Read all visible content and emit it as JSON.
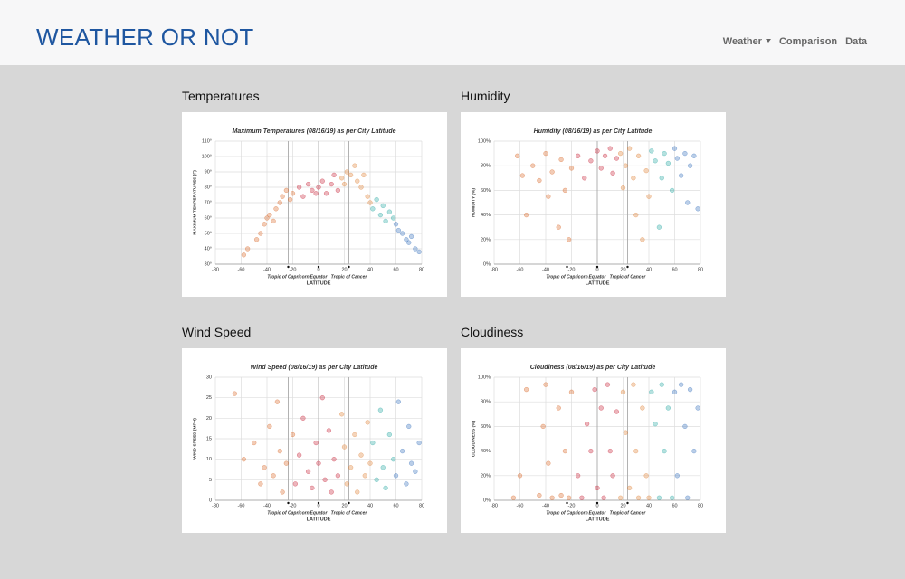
{
  "header": {
    "brand": "WEATHER OR NOT",
    "nav": [
      "Weather",
      "Comparison",
      "Data"
    ]
  },
  "sections": [
    "Temperatures",
    "Humidity",
    "Wind Speed",
    "Cloudiness"
  ],
  "color_by_latitude": [
    {
      "max": -20,
      "color": "#d9692a"
    },
    {
      "max": 15,
      "color": "#c8283c"
    },
    {
      "max": 40,
      "color": "#e0833a"
    },
    {
      "max": 58,
      "color": "#2aa9a3"
    },
    {
      "max": 80,
      "color": "#3a73bd"
    }
  ],
  "chart_data": [
    {
      "type": "scatter",
      "title": "Maximum Temperatures (08/16/19) as per City Latitude",
      "x_label": "LATITUDE",
      "y_label": "MAXIMUM TEMPERATURES (F)",
      "xlim": [
        -80,
        80
      ],
      "xticks": [
        -80,
        -60,
        -40,
        -20,
        0,
        20,
        40,
        60,
        80
      ],
      "ylim": [
        30,
        110
      ],
      "yticks": [
        {
          "value": 30,
          "label": "30°"
        },
        {
          "value": 40,
          "label": "40°"
        },
        {
          "value": 50,
          "label": "50°"
        },
        {
          "value": 60,
          "label": "60°"
        },
        {
          "value": 70,
          "label": "70°"
        },
        {
          "value": 80,
          "label": "80°"
        },
        {
          "value": 90,
          "label": "90°"
        },
        {
          "value": 100,
          "label": "100°"
        },
        {
          "value": 110,
          "label": "110°"
        }
      ],
      "grid": true,
      "annotations": [
        {
          "label": "Tropic of Capricorn",
          "x": -23.5
        },
        {
          "label": "Equator",
          "x": 0
        },
        {
          "label": "Tropic of Cancer",
          "x": 23.5
        }
      ],
      "x": [
        -58,
        -55,
        -48,
        -45,
        -42,
        -40,
        -38,
        -35,
        -33,
        -30,
        -28,
        -25,
        -22,
        -20,
        -15,
        -12,
        -8,
        -5,
        -2,
        0,
        3,
        6,
        10,
        12,
        15,
        18,
        20,
        22,
        25,
        28,
        30,
        33,
        35,
        38,
        40,
        42,
        45,
        48,
        50,
        52,
        55,
        58,
        60,
        62,
        65,
        68,
        70,
        72,
        75,
        78
      ],
      "values": [
        36,
        40,
        46,
        50,
        56,
        60,
        62,
        58,
        66,
        70,
        74,
        78,
        72,
        76,
        80,
        74,
        82,
        78,
        76,
        80,
        84,
        76,
        82,
        88,
        78,
        86,
        82,
        90,
        88,
        94,
        84,
        80,
        88,
        74,
        70,
        66,
        72,
        62,
        68,
        58,
        64,
        60,
        56,
        52,
        50,
        46,
        44,
        48,
        40,
        38
      ]
    },
    {
      "type": "scatter",
      "title": "Humidity (08/16/19) as per City Latitude",
      "x_label": "LATITUDE",
      "y_label": "HUMIDITY (%)",
      "xlim": [
        -80,
        80
      ],
      "xticks": [
        -80,
        -60,
        -40,
        -20,
        0,
        20,
        40,
        60,
        80
      ],
      "ylim": [
        0,
        100
      ],
      "yticks": [
        {
          "value": 0,
          "label": "0%"
        },
        {
          "value": 20,
          "label": "20%"
        },
        {
          "value": 40,
          "label": "40%"
        },
        {
          "value": 60,
          "label": "60%"
        },
        {
          "value": 80,
          "label": "80%"
        },
        {
          "value": 100,
          "label": "100%"
        }
      ],
      "grid": true,
      "annotations": [
        {
          "label": "Tropic of Capricorn",
          "x": -23.5
        },
        {
          "label": "Equator",
          "x": 0
        },
        {
          "label": "Tropic of Cancer",
          "x": 23.5
        }
      ],
      "x": [
        -62,
        -58,
        -55,
        -50,
        -45,
        -40,
        -38,
        -35,
        -30,
        -28,
        -25,
        -22,
        -20,
        -15,
        -10,
        -5,
        0,
        3,
        6,
        10,
        12,
        15,
        18,
        20,
        22,
        25,
        28,
        30,
        32,
        35,
        38,
        40,
        42,
        45,
        48,
        50,
        52,
        55,
        58,
        60,
        62,
        65,
        68,
        70,
        72,
        75,
        78
      ],
      "values": [
        88,
        72,
        40,
        80,
        68,
        90,
        55,
        75,
        30,
        85,
        60,
        20,
        78,
        88,
        70,
        84,
        92,
        78,
        88,
        94,
        74,
        86,
        90,
        62,
        80,
        94,
        70,
        40,
        88,
        20,
        76,
        55,
        92,
        84,
        30,
        70,
        90,
        82,
        60,
        94,
        86,
        72,
        90,
        50,
        80,
        88,
        45
      ]
    },
    {
      "type": "scatter",
      "title": "Wind Speed (08/16/19) as per City Latitude",
      "x_label": "LATITUDE",
      "y_label": "WIND SPEED (MPH)",
      "xlim": [
        -80,
        80
      ],
      "xticks": [
        -80,
        -60,
        -40,
        -20,
        0,
        20,
        40,
        60,
        80
      ],
      "ylim": [
        0,
        30
      ],
      "yticks": [
        0,
        5,
        10,
        15,
        20,
        25,
        30
      ],
      "grid": true,
      "annotations": [
        {
          "label": "Tropic of Capricorn",
          "x": -23.5
        },
        {
          "label": "Equator",
          "x": 0
        },
        {
          "label": "Tropic of Cancer",
          "x": 23.5
        }
      ],
      "x": [
        -65,
        -58,
        -50,
        -45,
        -42,
        -38,
        -35,
        -32,
        -30,
        -28,
        -25,
        -20,
        -18,
        -15,
        -12,
        -8,
        -5,
        -2,
        0,
        3,
        5,
        8,
        10,
        12,
        15,
        18,
        20,
        22,
        25,
        28,
        30,
        33,
        36,
        38,
        40,
        42,
        45,
        48,
        50,
        52,
        55,
        58,
        60,
        62,
        65,
        68,
        70,
        72,
        75,
        78
      ],
      "values": [
        26,
        10,
        14,
        4,
        8,
        18,
        6,
        24,
        12,
        2,
        9,
        16,
        4,
        11,
        20,
        7,
        3,
        14,
        9,
        25,
        5,
        17,
        2,
        10,
        6,
        21,
        13,
        4,
        8,
        16,
        2,
        11,
        6,
        19,
        9,
        14,
        5,
        22,
        8,
        3,
        16,
        10,
        6,
        24,
        12,
        4,
        18,
        9,
        7,
        14
      ]
    },
    {
      "type": "scatter",
      "title": "Cloudiness (08/16/19) as per City Latitude",
      "x_label": "LATITUDE",
      "y_label": "CLOUDINESS (%)",
      "xlim": [
        -80,
        80
      ],
      "xticks": [
        -80,
        -60,
        -40,
        -20,
        0,
        20,
        40,
        60,
        80
      ],
      "ylim": [
        0,
        100
      ],
      "yticks": [
        {
          "value": 0,
          "label": "0%"
        },
        {
          "value": 20,
          "label": "20%"
        },
        {
          "value": 40,
          "label": "40%"
        },
        {
          "value": 60,
          "label": "60%"
        },
        {
          "value": 80,
          "label": "80%"
        },
        {
          "value": 100,
          "label": "100%"
        }
      ],
      "grid": true,
      "annotations": [
        {
          "label": "Tropic of Capricorn",
          "x": -23.5
        },
        {
          "label": "Equator",
          "x": 0
        },
        {
          "label": "Tropic of Cancer",
          "x": 23.5
        }
      ],
      "x": [
        -65,
        -60,
        -55,
        -45,
        -42,
        -40,
        -38,
        -35,
        -30,
        -28,
        -25,
        -22,
        -20,
        -15,
        -12,
        -8,
        -5,
        -2,
        0,
        3,
        5,
        8,
        10,
        12,
        15,
        18,
        20,
        22,
        25,
        28,
        30,
        32,
        35,
        38,
        40,
        42,
        45,
        48,
        50,
        52,
        55,
        58,
        60,
        62,
        65,
        68,
        70,
        72,
        75,
        78
      ],
      "values": [
        2,
        20,
        90,
        4,
        60,
        94,
        30,
        2,
        75,
        4,
        40,
        2,
        88,
        20,
        2,
        62,
        40,
        90,
        10,
        75,
        2,
        94,
        40,
        20,
        72,
        2,
        88,
        55,
        10,
        94,
        40,
        2,
        75,
        20,
        2,
        88,
        62,
        2,
        94,
        40,
        75,
        2,
        88,
        20,
        94,
        60,
        2,
        90,
        40,
        75
      ]
    }
  ]
}
